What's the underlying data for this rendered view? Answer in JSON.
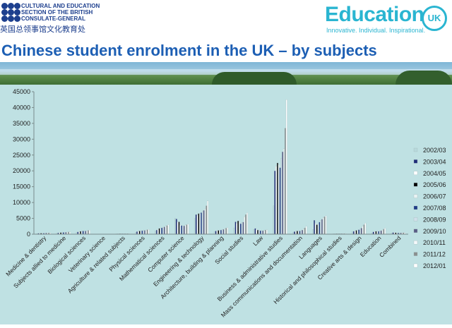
{
  "header": {
    "org_line1": "CULTURAL AND EDUCATION",
    "org_line2": "SECTION OF THE BRITISH",
    "org_line3": "CONSULATE-GENERAL",
    "org_cn": "英国总领事馆文化教育处",
    "brand_word": "Education",
    "brand_badge": "UK",
    "brand_tagline": "Innovative. Individual. Inspirational.",
    "brand_color": "#2ab5d1",
    "org_color": "#1d3f8e"
  },
  "chart_data": {
    "type": "bar",
    "title": "Chinese student enrolment in the UK – by subjects",
    "xlabel": "",
    "ylabel": "",
    "ylim": [
      0,
      45000
    ],
    "yticks": [
      "0",
      "5000",
      "10000",
      "15000",
      "20000",
      "25000",
      "30000",
      "35000",
      "40000",
      "45000"
    ],
    "grid": false,
    "legend_position": "right",
    "categories": [
      "Medicine & dentistry",
      "Subjects allied to medicine",
      "Biological sciences",
      "Veterinary science",
      "Agriculture & related subjects",
      "Physical sciences",
      "Mathematical sciences",
      "Computer science",
      "Engineering & technology",
      "Architecture, building & planning",
      "Social studies",
      "Law",
      "Business & administrative studies",
      "Mass communications and documentation",
      "Languages",
      "Historical and philosophical studies",
      "Creative arts & design",
      "Education",
      "Combined"
    ],
    "series": [
      {
        "name": "2002/03",
        "color": "#b8d9dc",
        "values": [
          200,
          300,
          500,
          20,
          100,
          600,
          1000,
          5000,
          5000,
          800,
          2000,
          1500,
          9000,
          600,
          1500,
          100,
          700,
          400,
          400
        ]
      },
      {
        "name": "2003/04",
        "color": "#1f2d7a",
        "values": [
          250,
          400,
          700,
          20,
          120,
          800,
          1300,
          4800,
          6200,
          1000,
          3900,
          1800,
          20000,
          800,
          4400,
          120,
          900,
          700,
          500
        ]
      },
      {
        "name": "2004/05",
        "color": "#ffffff",
        "values": [
          250,
          450,
          800,
          20,
          130,
          900,
          1500,
          3900,
          6000,
          1100,
          3500,
          1500,
          21500,
          900,
          3500,
          130,
          1000,
          800,
          500
        ]
      },
      {
        "name": "2005/06",
        "color": "#000000",
        "values": [
          300,
          500,
          900,
          20,
          150,
          1000,
          1800,
          3900,
          6500,
          1200,
          4200,
          1300,
          22500,
          1000,
          3000,
          150,
          1200,
          900,
          450
        ]
      },
      {
        "name": "2006/07",
        "color": "#e8f3f3",
        "values": [
          300,
          500,
          900,
          20,
          150,
          1100,
          1900,
          3000,
          6500,
          1200,
          4000,
          1200,
          22000,
          1000,
          3200,
          150,
          1300,
          900,
          400
        ]
      },
      {
        "name": "2007/08",
        "color": "#1f3c88",
        "values": [
          300,
          550,
          1000,
          20,
          150,
          1100,
          2000,
          2700,
          6800,
          1300,
          3300,
          1100,
          21000,
          1000,
          3800,
          150,
          1400,
          900,
          400
        ]
      },
      {
        "name": "2008/09",
        "color": "#cfe0ea",
        "values": [
          350,
          600,
          1000,
          20,
          160,
          1200,
          2200,
          2600,
          7200,
          1400,
          3700,
          1100,
          24000,
          1100,
          4400,
          170,
          1600,
          1000,
          400
        ]
      },
      {
        "name": "2009/10",
        "color": "#5a5e86",
        "values": [
          350,
          600,
          1000,
          20,
          160,
          1200,
          2300,
          2600,
          7500,
          1500,
          3800,
          1100,
          26000,
          1300,
          4700,
          180,
          1900,
          1100,
          400
        ]
      },
      {
        "name": "2010/11",
        "color": "#f4f9fa",
        "values": [
          400,
          650,
          1100,
          20,
          180,
          1300,
          2500,
          2900,
          8000,
          1700,
          5500,
          1200,
          27000,
          1600,
          5200,
          200,
          2500,
          1300,
          450
        ]
      },
      {
        "name": "2011/12",
        "color": "#8a8f8f",
        "values": [
          400,
          700,
          1200,
          20,
          190,
          1400,
          2700,
          3000,
          9000,
          1900,
          6200,
          1300,
          33500,
          2000,
          5500,
          200,
          3000,
          1600,
          450
        ]
      },
      {
        "name": "2012/01",
        "color": "#ffffff",
        "values": [
          450,
          750,
          1300,
          20,
          200,
          1500,
          3000,
          3200,
          10500,
          2100,
          6800,
          1400,
          42500,
          2500,
          5800,
          220,
          3500,
          1900,
          500
        ]
      }
    ]
  }
}
